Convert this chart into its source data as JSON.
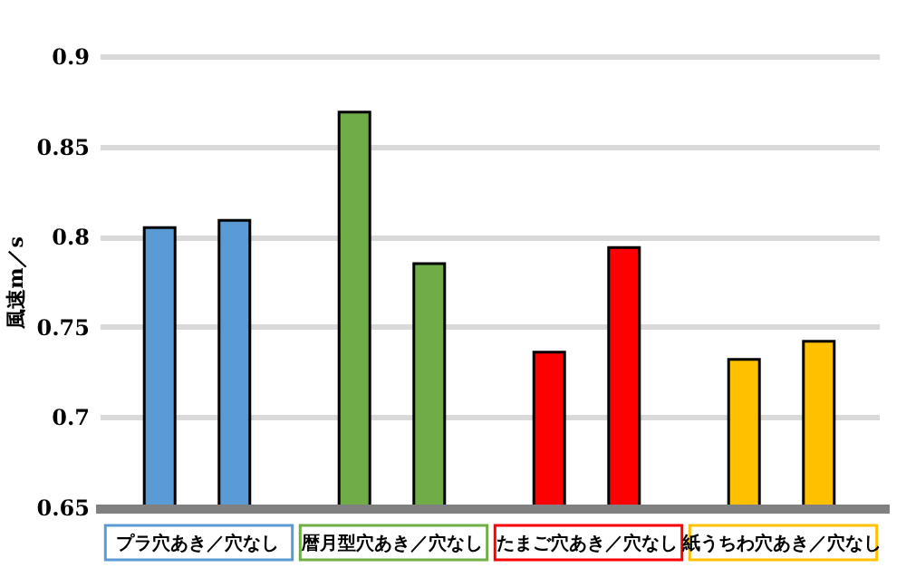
{
  "chart_data": {
    "type": "bar",
    "ylabel": "風速m／s",
    "categories": [
      "プラ穴あき／穴なし",
      "暦月型穴あき／穴なし",
      "たまご穴あき／穴なし",
      "紙うちわ穴あき／穴なし"
    ],
    "series": [
      {
        "colors": [
          "#5b9bd5",
          "#70ad47",
          "#ff0000",
          "#ffc000"
        ],
        "values": [
          0.805,
          0.869,
          0.736,
          0.732
        ]
      },
      {
        "colors": [
          "#5b9bd5",
          "#70ad47",
          "#ff0000",
          "#ffc000"
        ],
        "values": [
          0.809,
          0.785,
          0.794,
          0.742
        ]
      }
    ],
    "ylim": [
      0.65,
      0.9
    ],
    "yticks": [
      0.65,
      0.7,
      0.75,
      0.8,
      0.85,
      0.9
    ],
    "grid": "y"
  }
}
